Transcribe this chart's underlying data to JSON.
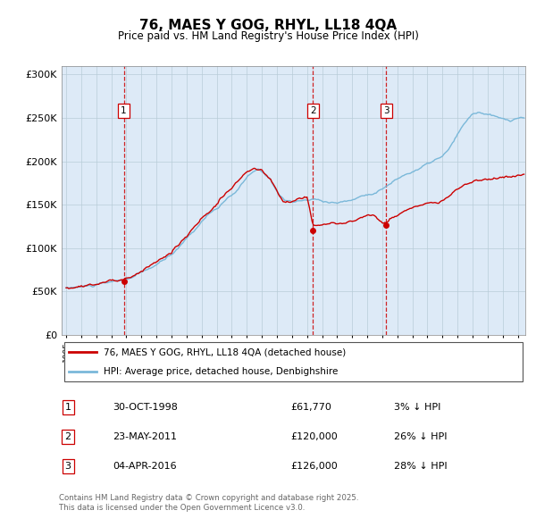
{
  "title": "76, MAES Y GOG, RHYL, LL18 4QA",
  "subtitle": "Price paid vs. HM Land Registry's House Price Index (HPI)",
  "legend_line1": "76, MAES Y GOG, RHYL, LL18 4QA (detached house)",
  "legend_line2": "HPI: Average price, detached house, Denbighshire",
  "footer": "Contains HM Land Registry data © Crown copyright and database right 2025.\nThis data is licensed under the Open Government Licence v3.0.",
  "sale_markers": [
    {
      "num": 1,
      "date_x": 1998.83,
      "price": 61770,
      "label": "30-OCT-1998",
      "price_str": "£61,770",
      "pct": "3% ↓ HPI"
    },
    {
      "num": 2,
      "date_x": 2011.39,
      "price": 120000,
      "label": "23-MAY-2011",
      "price_str": "£120,000",
      "pct": "26% ↓ HPI"
    },
    {
      "num": 3,
      "date_x": 2016.25,
      "price": 126000,
      "label": "04-APR-2016",
      "price_str": "£126,000",
      "pct": "28% ↓ HPI"
    }
  ],
  "hpi_color": "#7ab8d9",
  "price_color": "#cc0000",
  "bg_color": "#ddeaf7",
  "grid_color": "#c8d8e8",
  "vline_color": "#cc0000",
  "marker_color": "#cc0000",
  "ylim": [
    0,
    310000
  ],
  "yticks": [
    0,
    50000,
    100000,
    150000,
    200000,
    250000,
    300000
  ],
  "ylabel_fmt": [
    "£0",
    "£50K",
    "£100K",
    "£150K",
    "£200K",
    "£250K",
    "£300K"
  ],
  "xmin": 1994.7,
  "xmax": 2025.5
}
